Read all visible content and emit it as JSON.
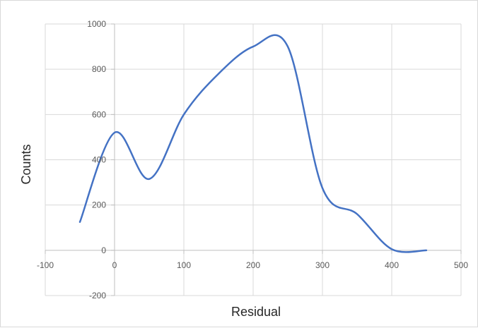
{
  "chart_data": {
    "type": "line",
    "title": "",
    "xlabel": "Residual",
    "ylabel": "Counts",
    "xlim": [
      -100,
      500
    ],
    "ylim": [
      -200,
      1000
    ],
    "x_ticks": [
      -100,
      0,
      100,
      200,
      300,
      400,
      500
    ],
    "y_ticks": [
      -200,
      0,
      200,
      400,
      600,
      800,
      1000
    ],
    "grid": true,
    "legend": "none",
    "series": [
      {
        "color": "#4472c4",
        "smooth": true,
        "points": [
          [
            -50,
            125
          ],
          [
            0,
            520
          ],
          [
            50,
            315
          ],
          [
            100,
            600
          ],
          [
            150,
            780
          ],
          [
            200,
            900
          ],
          [
            250,
            900
          ],
          [
            300,
            275
          ],
          [
            350,
            160
          ],
          [
            400,
            5
          ],
          [
            450,
            0
          ]
        ]
      }
    ]
  }
}
